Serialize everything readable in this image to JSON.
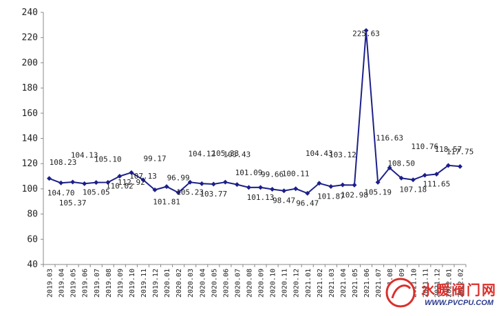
{
  "chart_data": {
    "type": "line",
    "title": "",
    "xlabel": "",
    "ylabel": "",
    "ylim": [
      40,
      240
    ],
    "yticks": [
      40,
      60,
      80,
      100,
      120,
      140,
      160,
      180,
      200,
      220,
      240
    ],
    "grid": false,
    "color": "#1c1f8a",
    "categories": [
      "2019.03",
      "2019.04",
      "2019.05",
      "2019.06",
      "2019.07",
      "2019.08",
      "2019.09",
      "2019.10",
      "2019.11",
      "2019.12",
      "2020.01",
      "2020.02",
      "2020.03",
      "2020.04",
      "2020.05",
      "2020.06",
      "2020.07",
      "2020.08",
      "2020.09",
      "2020.10",
      "2020.11",
      "2020.12",
      "2021.01",
      "2021.02",
      "2021.03",
      "2021.04",
      "2021.05",
      "2021.06",
      "2021.07",
      "2021.08",
      "2021.09",
      "2021.10",
      "2021.11",
      "2021.12",
      "2022.01",
      "2022.02"
    ],
    "values": [
      108.23,
      104.7,
      105.37,
      104.13,
      105.05,
      105.1,
      110.02,
      112.92,
      107.13,
      99.17,
      101.81,
      96.99,
      105.23,
      104.12,
      103.77,
      105.33,
      103.43,
      101.09,
      101.13,
      99.66,
      98.47,
      100.11,
      96.47,
      104.43,
      101.87,
      103.12,
      102.98,
      225.63,
      105.19,
      116.63,
      108.5,
      107.18,
      110.76,
      111.65,
      118.57,
      117.75
    ],
    "labels": [
      "108.23",
      "104.70",
      "105.37",
      "104.13",
      "105.05",
      "105.10",
      "110.02",
      "112.92",
      "107.13",
      "99.17",
      "101.81",
      "96.99",
      "105.23",
      "104.12",
      "103.77",
      "105.33",
      "103.43",
      "101.09",
      "101.13",
      "99.66",
      "98.47",
      "100.11",
      "96.47",
      "104.43",
      "101.87",
      "103.12",
      "102.98",
      "225.63",
      "105.19",
      "116.63",
      "108.50",
      "107.18",
      "110.76",
      "111.65",
      "118.57",
      "117.75"
    ]
  },
  "watermark": {
    "title": "水暖阀门网",
    "url": "WWW.PVCPU.COM",
    "logo_letters": "PV"
  }
}
